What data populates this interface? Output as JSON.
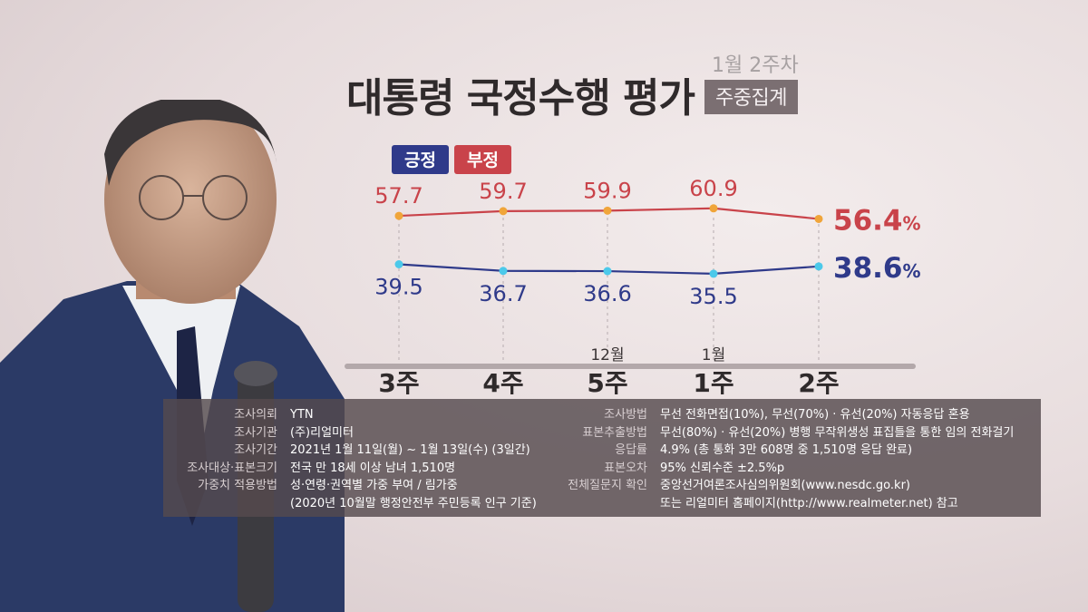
{
  "title": "대통령 국정수행 평가",
  "subtitle": {
    "week": "1월 2주차",
    "badge": "주중집계"
  },
  "legend": [
    {
      "label": "긍정",
      "color": "#2f3a8a"
    },
    {
      "label": "부정",
      "color": "#c9434a"
    }
  ],
  "chart_data": {
    "type": "line",
    "categories": [
      "3주",
      "4주",
      "5주",
      "1주",
      "2주"
    ],
    "month_markers": [
      {
        "category_index": 2,
        "label": "12월"
      },
      {
        "category_index": 3,
        "label": "1월"
      }
    ],
    "series": [
      {
        "name": "부정",
        "values": [
          57.7,
          59.7,
          59.9,
          60.9,
          56.4
        ],
        "color": "#c9434a",
        "marker_color": "#f0a53a",
        "labels": [
          "57.7",
          "59.7",
          "59.9",
          "60.9",
          "56.4"
        ]
      },
      {
        "name": "긍정",
        "values": [
          39.5,
          36.7,
          36.6,
          35.5,
          38.6
        ],
        "color": "#2f3a8a",
        "marker_color": "#4cc9ea",
        "labels": [
          "39.5",
          "36.7",
          "36.6",
          "35.5",
          "38.6"
        ]
      }
    ],
    "percent_suffix": "%",
    "grid": false
  },
  "info": {
    "left": [
      {
        "key": "조사의뢰",
        "value": "YTN"
      },
      {
        "key": "조사기관",
        "value": "(주)리얼미터"
      },
      {
        "key": "조사기간",
        "value": "2021년 1월 11일(월) ~ 1월 13일(수) (3일간)"
      },
      {
        "key": "조사대상·표본크기",
        "value": "전국 만 18세 이상 남녀 1,510명"
      },
      {
        "key": "가중치 적용방법",
        "value": "성·연령·권역별 가중 부여 / 림가중"
      },
      {
        "key": "",
        "value": "(2020년 10월말 행정안전부 주민등록 인구 기준)"
      }
    ],
    "right": [
      {
        "key": "조사방법",
        "value": "무선 전화면접(10%), 무선(70%) · 유선(20%) 자동응답 혼용"
      },
      {
        "key": "표본추출방법",
        "value": "무선(80%) · 유선(20%) 병행 무작위생성 표집틀을 통한 임의 전화걸기"
      },
      {
        "key": "응답률",
        "value": "4.9% (총 통화 3만 608명 중  1,510명 응답 완료)"
      },
      {
        "key": "표본오차",
        "value": "95% 신뢰수준 ±2.5%p"
      },
      {
        "key": "전체질문지 확인",
        "value": "중앙선거여론조사심의위원회(www.nesdc.go.kr)"
      },
      {
        "key": "",
        "value": "또는 리얼미터 홈페이지(http://www.realmeter.net) 참고"
      }
    ]
  }
}
